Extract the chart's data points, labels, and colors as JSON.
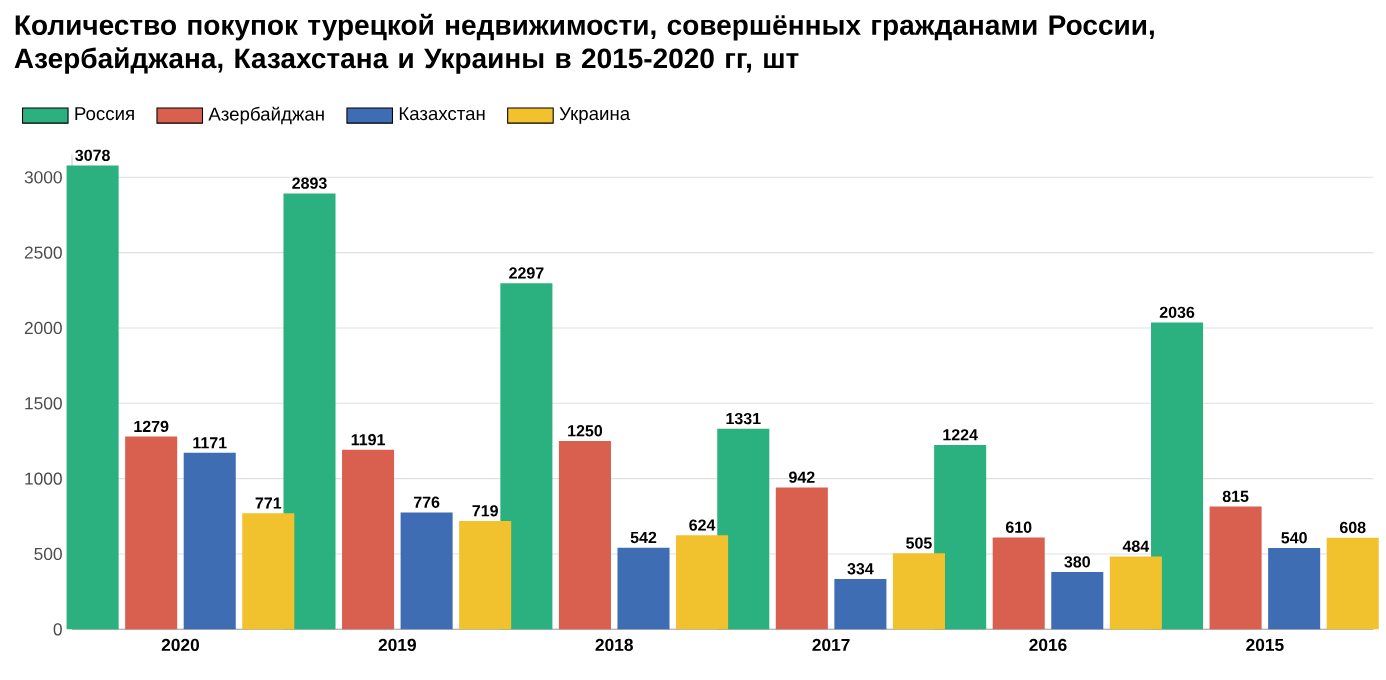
{
  "chart_data": {
    "type": "bar",
    "title": "Количество покупок турецкой недвижимости, совершённых гражданами России, Азербайджана, Казахстана и Украины в 2015-2020 гг, шт",
    "categories": [
      "2020",
      "2019",
      "2018",
      "2017",
      "2016",
      "2015"
    ],
    "series": [
      {
        "name": "Россия",
        "color": "#2bb07f",
        "values": [
          3078,
          2893,
          2297,
          1331,
          1224,
          2036
        ]
      },
      {
        "name": "Азербайджан",
        "color": "#d9604f",
        "values": [
          1279,
          1191,
          1250,
          942,
          610,
          815
        ]
      },
      {
        "name": "Казахстан",
        "color": "#3f6db3",
        "values": [
          1171,
          776,
          542,
          334,
          380,
          540
        ]
      },
      {
        "name": "Украина",
        "color": "#f2c12e",
        "values": [
          771,
          719,
          624,
          505,
          484,
          608
        ]
      }
    ],
    "ylim": [
      0,
      3150
    ],
    "yticks": [
      0,
      500,
      1000,
      1500,
      2000,
      2500,
      3000
    ],
    "grid": "y",
    "legend": "top left",
    "data_labels": true
  }
}
